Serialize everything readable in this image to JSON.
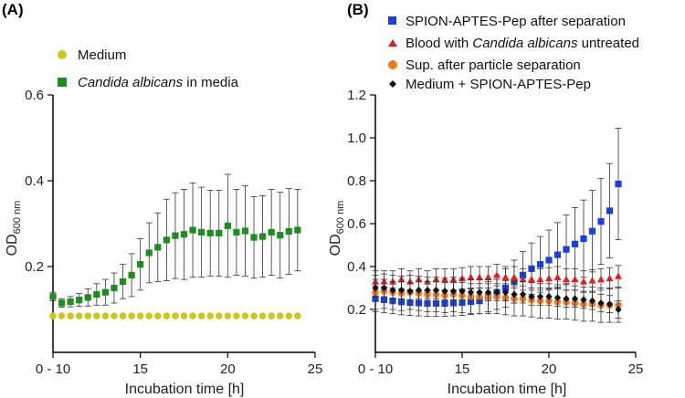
{
  "chart_data": [
    {
      "panel_label": "(A)",
      "type": "scatter",
      "xlabel": "Incubation time [h]",
      "ylabel_main": "OD",
      "ylabel_sub": "600 nm",
      "xlim": [
        10,
        25
      ],
      "ylim": [
        0.0,
        0.6
      ],
      "x_ticks": [
        10,
        15,
        20,
        25
      ],
      "x_tick_labels": [
        "0 - 10",
        "15",
        "20",
        "25"
      ],
      "y_ticks": [
        0.2,
        0.4,
        0.6
      ],
      "y_tick_labels": [
        "0.2",
        "0.4",
        "0.6"
      ],
      "legend_position": "top",
      "series": [
        {
          "name": "Medium",
          "name_italic": "",
          "name_tail": "",
          "color": "#c8c820",
          "marker": "circle",
          "x": [
            10,
            10.5,
            11,
            11.5,
            12,
            12.5,
            13,
            13.5,
            14,
            14.5,
            15,
            15.5,
            16,
            16.5,
            17,
            17.5,
            18,
            18.5,
            19,
            19.5,
            20,
            20.5,
            21,
            21.5,
            22,
            22.5,
            23,
            23.5,
            24
          ],
          "y": [
            0.085,
            0.085,
            0.085,
            0.085,
            0.085,
            0.085,
            0.085,
            0.085,
            0.085,
            0.085,
            0.085,
            0.085,
            0.085,
            0.085,
            0.085,
            0.085,
            0.085,
            0.085,
            0.085,
            0.085,
            0.085,
            0.085,
            0.085,
            0.085,
            0.085,
            0.085,
            0.085,
            0.085,
            0.085
          ],
          "err": [
            0,
            0,
            0,
            0,
            0,
            0,
            0,
            0,
            0,
            0,
            0,
            0,
            0,
            0,
            0,
            0,
            0,
            0,
            0,
            0,
            0,
            0,
            0,
            0,
            0,
            0,
            0,
            0,
            0
          ]
        },
        {
          "name": "",
          "name_italic": "Candida albicans",
          "name_tail": " in media",
          "color": "#1e8c1e",
          "marker": "square",
          "x": [
            10,
            10.5,
            11,
            11.5,
            12,
            12.5,
            13,
            13.5,
            14,
            14.5,
            15,
            15.5,
            16,
            16.5,
            17,
            17.5,
            18,
            18.5,
            19,
            19.5,
            20,
            20.5,
            21,
            21.5,
            22,
            22.5,
            23,
            23.5,
            24
          ],
          "y": [
            0.13,
            0.115,
            0.118,
            0.122,
            0.128,
            0.135,
            0.14,
            0.15,
            0.165,
            0.18,
            0.205,
            0.232,
            0.245,
            0.262,
            0.272,
            0.275,
            0.285,
            0.28,
            0.278,
            0.278,
            0.295,
            0.28,
            0.283,
            0.268,
            0.27,
            0.28,
            0.273,
            0.282,
            0.285
          ],
          "err": [
            0.01,
            0.01,
            0.012,
            0.015,
            0.02,
            0.025,
            0.03,
            0.035,
            0.04,
            0.05,
            0.06,
            0.07,
            0.08,
            0.095,
            0.1,
            0.105,
            0.11,
            0.105,
            0.1,
            0.1,
            0.12,
            0.1,
            0.105,
            0.095,
            0.095,
            0.1,
            0.1,
            0.1,
            0.095
          ]
        }
      ]
    },
    {
      "panel_label": "(B)",
      "type": "scatter",
      "xlabel": "Incubation time [h]",
      "ylabel_main": "OD",
      "ylabel_sub": "600 nm",
      "xlim": [
        10,
        25
      ],
      "ylim": [
        0.0,
        1.2
      ],
      "x_ticks": [
        10,
        15,
        20,
        25
      ],
      "x_tick_labels": [
        "0 - 10",
        "15",
        "20",
        "25"
      ],
      "y_ticks": [
        0.2,
        0.4,
        0.6,
        0.8,
        1.0,
        1.2
      ],
      "y_tick_labels": [
        "0.2",
        "0.4",
        "0.6",
        "0.8",
        "1.0",
        "1.2"
      ],
      "legend_position": "top",
      "series": [
        {
          "name": "SPION-APTES-Pep after separation",
          "name_italic": "",
          "name_tail": "",
          "color": "#1a3ee0",
          "marker": "square",
          "x": [
            10,
            10.5,
            11,
            11.5,
            12,
            12.5,
            13,
            13.5,
            14,
            14.5,
            15,
            15.5,
            16,
            16.5,
            17,
            17.5,
            18,
            18.5,
            19,
            19.5,
            20,
            20.5,
            21,
            21.5,
            22,
            22.5,
            23,
            23.5,
            24
          ],
          "y": [
            0.25,
            0.245,
            0.24,
            0.235,
            0.232,
            0.23,
            0.228,
            0.228,
            0.228,
            0.23,
            0.232,
            0.236,
            0.24,
            0.26,
            0.28,
            0.3,
            0.33,
            0.36,
            0.39,
            0.41,
            0.43,
            0.455,
            0.48,
            0.505,
            0.53,
            0.565,
            0.61,
            0.66,
            0.785
          ],
          "err": [
            0.06,
            0.06,
            0.06,
            0.06,
            0.06,
            0.06,
            0.06,
            0.06,
            0.06,
            0.06,
            0.06,
            0.06,
            0.06,
            0.07,
            0.08,
            0.09,
            0.1,
            0.11,
            0.12,
            0.13,
            0.14,
            0.15,
            0.16,
            0.17,
            0.18,
            0.19,
            0.2,
            0.22,
            0.26
          ]
        },
        {
          "name": "Blood with ",
          "name_italic": "Candida albicans",
          "name_tail": " untreated",
          "color": "#e02020",
          "marker": "triangle",
          "x": [
            10,
            10.5,
            11,
            11.5,
            12,
            12.5,
            13,
            13.5,
            14,
            14.5,
            15,
            15.5,
            16,
            16.5,
            17,
            17.5,
            18,
            18.5,
            19,
            19.5,
            20,
            20.5,
            21,
            21.5,
            22,
            22.5,
            23,
            23.5,
            24
          ],
          "y": [
            0.33,
            0.33,
            0.33,
            0.34,
            0.33,
            0.34,
            0.33,
            0.34,
            0.34,
            0.34,
            0.345,
            0.35,
            0.35,
            0.35,
            0.36,
            0.35,
            0.35,
            0.34,
            0.34,
            0.34,
            0.345,
            0.35,
            0.34,
            0.34,
            0.33,
            0.335,
            0.34,
            0.345,
            0.355
          ],
          "err": [
            0.05,
            0.05,
            0.05,
            0.05,
            0.05,
            0.05,
            0.05,
            0.05,
            0.05,
            0.05,
            0.05,
            0.05,
            0.05,
            0.05,
            0.05,
            0.05,
            0.05,
            0.05,
            0.05,
            0.05,
            0.05,
            0.05,
            0.05,
            0.05,
            0.05,
            0.05,
            0.05,
            0.05,
            0.05
          ]
        },
        {
          "name": "Sup. after particle separation",
          "name_italic": "",
          "name_tail": "",
          "color": "#f07820",
          "marker": "circle",
          "x": [
            10,
            10.5,
            11,
            11.5,
            12,
            12.5,
            13,
            13.5,
            14,
            14.5,
            15,
            15.5,
            16,
            16.5,
            17,
            17.5,
            18,
            18.5,
            19,
            19.5,
            20,
            20.5,
            21,
            21.5,
            22,
            22.5,
            23,
            23.5,
            24
          ],
          "y": [
            0.28,
            0.285,
            0.28,
            0.275,
            0.28,
            0.275,
            0.27,
            0.27,
            0.265,
            0.27,
            0.265,
            0.26,
            0.26,
            0.26,
            0.26,
            0.255,
            0.25,
            0.25,
            0.245,
            0.24,
            0.24,
            0.235,
            0.235,
            0.23,
            0.225,
            0.225,
            0.22,
            0.22,
            0.22
          ],
          "err": [
            0.08,
            0.08,
            0.08,
            0.08,
            0.08,
            0.08,
            0.08,
            0.08,
            0.08,
            0.08,
            0.08,
            0.08,
            0.08,
            0.08,
            0.08,
            0.08,
            0.08,
            0.08,
            0.08,
            0.08,
            0.08,
            0.08,
            0.08,
            0.08,
            0.08,
            0.08,
            0.08,
            0.08,
            0.08
          ]
        },
        {
          "name": "Medium + SPION-APTES-Pep",
          "name_italic": "",
          "name_tail": "",
          "color": "#111111",
          "marker": "diamond",
          "x": [
            10,
            10.5,
            11,
            11.5,
            12,
            12.5,
            13,
            13.5,
            14,
            14.5,
            15,
            15.5,
            16,
            16.5,
            17,
            17.5,
            18,
            18.5,
            19,
            19.5,
            20,
            20.5,
            21,
            21.5,
            22,
            22.5,
            23,
            23.5,
            24
          ],
          "y": [
            0.3,
            0.3,
            0.29,
            0.29,
            0.285,
            0.29,
            0.29,
            0.29,
            0.285,
            0.285,
            0.285,
            0.28,
            0.28,
            0.28,
            0.28,
            0.28,
            0.27,
            0.27,
            0.26,
            0.26,
            0.26,
            0.255,
            0.25,
            0.25,
            0.245,
            0.24,
            0.23,
            0.225,
            0.2
          ],
          "err": [
            0.04,
            0.04,
            0.04,
            0.04,
            0.04,
            0.04,
            0.04,
            0.04,
            0.04,
            0.04,
            0.04,
            0.04,
            0.04,
            0.04,
            0.04,
            0.04,
            0.04,
            0.04,
            0.04,
            0.04,
            0.04,
            0.04,
            0.04,
            0.04,
            0.04,
            0.04,
            0.04,
            0.04,
            0.04
          ]
        }
      ]
    }
  ]
}
